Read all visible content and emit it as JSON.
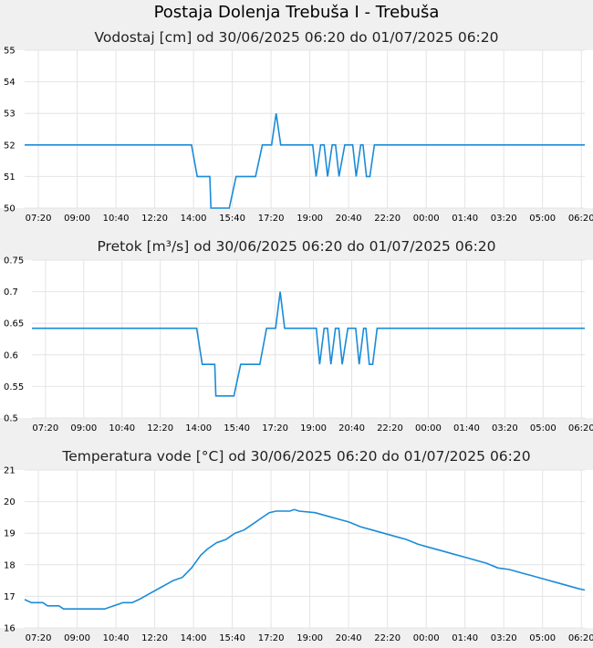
{
  "page_title": "Postaja Dolenja Trebuša I - Trebuša",
  "style": {
    "background": "#f0f0f0",
    "plot_background": "#ffffff",
    "grid": "#e4e4e4",
    "line": "#1a8bd8"
  },
  "chart_data": [
    {
      "type": "line",
      "title": "Vodostaj [cm] od 30/06/2025 06:20 do 01/07/2025 06:20",
      "xlabel": "",
      "ylabel": "",
      "ylim": [
        50,
        55
      ],
      "yticks": [
        "50",
        "51",
        "52",
        "53",
        "54",
        "55"
      ],
      "xticks": [
        "07:20",
        "09:00",
        "10:40",
        "12:20",
        "14:00",
        "15:40",
        "17:20",
        "19:00",
        "20:40",
        "22:20",
        "00:00",
        "01:40",
        "03:20",
        "05:00",
        "06:20"
      ],
      "grid": true,
      "series": [
        {
          "values": [
            [
              0,
              52
            ],
            [
              7.3,
              52
            ],
            [
              7.55,
              51
            ],
            [
              7.95,
              51
            ],
            [
              8.1,
              51
            ],
            [
              8.15,
              50
            ],
            [
              8.95,
              50
            ],
            [
              9.25,
              51
            ],
            [
              10.1,
              51
            ],
            [
              10.4,
              52
            ],
            [
              10.8,
              52
            ],
            [
              11,
              53
            ],
            [
              11.2,
              52
            ],
            [
              12.6,
              52
            ],
            [
              12.75,
              51
            ],
            [
              12.95,
              52
            ],
            [
              13.1,
              52
            ],
            [
              13.25,
              51
            ],
            [
              13.45,
              52
            ],
            [
              13.6,
              52
            ],
            [
              13.75,
              51
            ],
            [
              14.0,
              52
            ],
            [
              14.35,
              52
            ],
            [
              14.5,
              51
            ],
            [
              14.7,
              52
            ],
            [
              14.8,
              52
            ],
            [
              14.95,
              51
            ],
            [
              15.1,
              51
            ],
            [
              15.3,
              52
            ],
            [
              24.5,
              52
            ]
          ]
        }
      ]
    },
    {
      "type": "line",
      "title": "Pretok [m³/s] od 30/06/2025 06:20 do 01/07/2025 06:20",
      "xlabel": "",
      "ylabel": "",
      "ylim": [
        0.5,
        0.75
      ],
      "yticks": [
        "0.5",
        "0.55",
        "0.6",
        "0.65",
        "0.7",
        "0.75"
      ],
      "xticks": [
        "07:20",
        "09:00",
        "10:40",
        "12:20",
        "14:00",
        "15:40",
        "17:20",
        "19:00",
        "20:40",
        "22:20",
        "00:00",
        "01:40",
        "03:20",
        "05:00",
        "06:20"
      ],
      "grid": true,
      "series": [
        {
          "values": [
            [
              0,
              0.642
            ],
            [
              7.3,
              0.642
            ],
            [
              7.55,
              0.585
            ],
            [
              7.95,
              0.585
            ],
            [
              8.1,
              0.585
            ],
            [
              8.15,
              0.535
            ],
            [
              8.95,
              0.535
            ],
            [
              9.25,
              0.585
            ],
            [
              10.1,
              0.585
            ],
            [
              10.4,
              0.642
            ],
            [
              10.8,
              0.642
            ],
            [
              11,
              0.7
            ],
            [
              11.2,
              0.642
            ],
            [
              12.6,
              0.642
            ],
            [
              12.75,
              0.585
            ],
            [
              12.95,
              0.642
            ],
            [
              13.1,
              0.642
            ],
            [
              13.25,
              0.585
            ],
            [
              13.45,
              0.642
            ],
            [
              13.6,
              0.642
            ],
            [
              13.75,
              0.585
            ],
            [
              14.0,
              0.642
            ],
            [
              14.35,
              0.642
            ],
            [
              14.5,
              0.585
            ],
            [
              14.7,
              0.642
            ],
            [
              14.8,
              0.642
            ],
            [
              14.95,
              0.585
            ],
            [
              15.1,
              0.585
            ],
            [
              15.3,
              0.642
            ],
            [
              24.5,
              0.642
            ]
          ]
        }
      ]
    },
    {
      "type": "line",
      "title": "Temperatura vode [°C] od 30/06/2025 06:20 do 01/07/2025 06:20",
      "xlabel": "",
      "ylabel": "",
      "ylim": [
        16,
        21
      ],
      "yticks": [
        "16",
        "17",
        "18",
        "19",
        "20",
        "21"
      ],
      "xticks": [
        "07:20",
        "09:00",
        "10:40",
        "12:20",
        "14:00",
        "15:40",
        "17:20",
        "19:00",
        "20:40",
        "22:20",
        "00:00",
        "01:40",
        "03:20",
        "05:00",
        "06:20"
      ],
      "grid": true,
      "series": [
        {
          "values": [
            [
              0,
              16.9
            ],
            [
              0.3,
              16.8
            ],
            [
              0.8,
              16.8
            ],
            [
              1.0,
              16.7
            ],
            [
              1.5,
              16.7
            ],
            [
              1.7,
              16.6
            ],
            [
              3.5,
              16.6
            ],
            [
              3.9,
              16.7
            ],
            [
              4.3,
              16.8
            ],
            [
              4.7,
              16.8
            ],
            [
              5.0,
              16.9
            ],
            [
              5.5,
              17.1
            ],
            [
              6.0,
              17.3
            ],
            [
              6.5,
              17.5
            ],
            [
              6.9,
              17.6
            ],
            [
              7.3,
              17.9
            ],
            [
              7.7,
              18.3
            ],
            [
              8.0,
              18.5
            ],
            [
              8.4,
              18.7
            ],
            [
              8.8,
              18.8
            ],
            [
              9.2,
              19.0
            ],
            [
              9.6,
              19.1
            ],
            [
              10.0,
              19.3
            ],
            [
              10.4,
              19.5
            ],
            [
              10.7,
              19.65
            ],
            [
              11.0,
              19.7
            ],
            [
              11.6,
              19.7
            ],
            [
              11.8,
              19.75
            ],
            [
              12.0,
              19.7
            ],
            [
              12.7,
              19.65
            ],
            [
              13.2,
              19.55
            ],
            [
              13.7,
              19.45
            ],
            [
              14.2,
              19.35
            ],
            [
              14.7,
              19.2
            ],
            [
              15.2,
              19.1
            ],
            [
              15.7,
              19.0
            ],
            [
              16.2,
              18.9
            ],
            [
              16.7,
              18.8
            ],
            [
              17.2,
              18.65
            ],
            [
              17.7,
              18.55
            ],
            [
              18.2,
              18.45
            ],
            [
              18.7,
              18.35
            ],
            [
              19.2,
              18.25
            ],
            [
              19.7,
              18.15
            ],
            [
              20.2,
              18.05
            ],
            [
              20.7,
              17.9
            ],
            [
              21.2,
              17.85
            ],
            [
              21.7,
              17.75
            ],
            [
              22.2,
              17.65
            ],
            [
              22.7,
              17.55
            ],
            [
              23.2,
              17.45
            ],
            [
              23.7,
              17.35
            ],
            [
              24.2,
              17.25
            ],
            [
              24.5,
              17.2
            ]
          ]
        }
      ]
    }
  ]
}
